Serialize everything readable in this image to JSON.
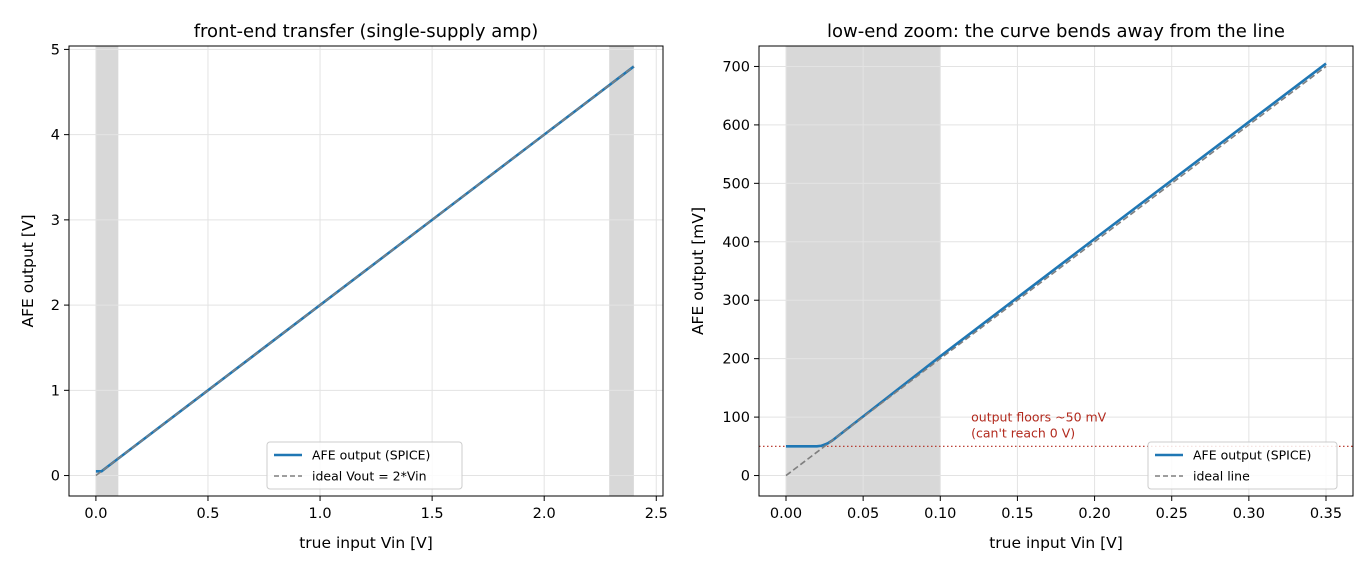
{
  "chart_data": [
    {
      "type": "line",
      "title": "front-end transfer (single-supply amp)",
      "xlabel": "true input Vin [V]",
      "ylabel": "AFE output [V]",
      "xlim": [
        -0.12,
        2.53
      ],
      "ylim": [
        -0.24,
        5.04
      ],
      "xticks": [
        0.0,
        0.5,
        1.0,
        1.5,
        2.0,
        2.5
      ],
      "xtick_labels": [
        "0.0",
        "0.5",
        "1.0",
        "1.5",
        "2.0",
        "2.5"
      ],
      "yticks": [
        0,
        1,
        2,
        3,
        4,
        5
      ],
      "ytick_labels": [
        "0",
        "1",
        "2",
        "3",
        "4",
        "5"
      ],
      "grid": true,
      "legend_position": "lower-center",
      "shaded_regions": [
        [
          0.0,
          0.1
        ],
        [
          2.29,
          2.4
        ]
      ],
      "series": [
        {
          "name": "AFE output (SPICE)",
          "style": "solid",
          "color": "#1f77b4",
          "x": [
            0.0,
            0.025,
            0.05,
            0.5,
            1.0,
            1.5,
            2.0,
            2.4
          ],
          "y": [
            0.05,
            0.05,
            0.1,
            1.0,
            2.0,
            3.0,
            4.0,
            4.8
          ]
        },
        {
          "name": "ideal  Vout = 2*Vin",
          "style": "dashed",
          "color": "#7f7f7f",
          "x": [
            0.0,
            2.4
          ],
          "y": [
            0.0,
            4.8
          ]
        }
      ]
    },
    {
      "type": "line",
      "title": "low-end zoom: the curve bends away from the line",
      "xlabel": "true input Vin [V]",
      "ylabel": "AFE output [mV]",
      "xlim": [
        -0.0175,
        0.3675
      ],
      "ylim": [
        -35,
        735
      ],
      "xticks": [
        0.0,
        0.05,
        0.1,
        0.15,
        0.2,
        0.25,
        0.3,
        0.35
      ],
      "xtick_labels": [
        "0.00",
        "0.05",
        "0.10",
        "0.15",
        "0.20",
        "0.25",
        "0.30",
        "0.35"
      ],
      "yticks": [
        0,
        100,
        200,
        300,
        400,
        500,
        600,
        700
      ],
      "ytick_labels": [
        "0",
        "100",
        "200",
        "300",
        "400",
        "500",
        "600",
        "700"
      ],
      "grid": true,
      "legend_position": "lower-right",
      "shaded_regions": [
        [
          0.0,
          0.1
        ]
      ],
      "hline": {
        "y": 50,
        "color": "#b22a1e",
        "style": "dotted"
      },
      "annotation": {
        "lines": [
          "output floors ~50 mV",
          "(can't reach 0 V)"
        ],
        "x": 0.12,
        "y": 60
      },
      "series": [
        {
          "name": "AFE output (SPICE)",
          "style": "solid",
          "color": "#1f77b4",
          "x": [
            0.0,
            0.02,
            0.023,
            0.025,
            0.027,
            0.03,
            0.1,
            0.2,
            0.3,
            0.35
          ],
          "y": [
            50,
            50,
            51,
            53,
            55,
            60,
            204,
            405,
            605,
            705
          ]
        },
        {
          "name": "ideal line",
          "style": "dashed",
          "color": "#7f7f7f",
          "x": [
            0.0,
            0.35
          ],
          "y": [
            0,
            700
          ]
        }
      ]
    }
  ]
}
